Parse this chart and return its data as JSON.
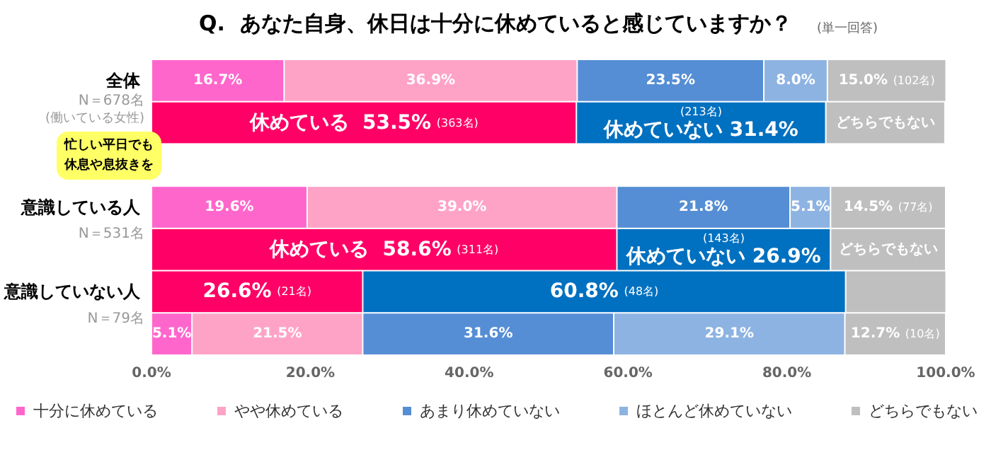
{
  "chart_data": {
    "type": "bar",
    "orientation": "horizontal",
    "stacked": true,
    "title": "Q.  あなた自身、休日は十分に休めていると感じていますか？",
    "subtitle": "(単一回答)",
    "categories": [
      "全体",
      null,
      null,
      "意識している人",
      null,
      "意識していない人",
      null
    ],
    "series": [
      {
        "name": "十分に休めている",
        "color": "#ff66cc",
        "values": [
          16.7,
          null,
          null,
          19.6,
          null,
          null,
          5.1
        ],
        "value_labels": [
          "16.7%",
          null,
          null,
          "19.6%",
          null,
          null,
          "5.1%"
        ]
      },
      {
        "name": "やや休めている",
        "color": "#ffa3c6",
        "values": [
          36.9,
          null,
          null,
          39.0,
          null,
          null,
          21.5
        ],
        "value_labels": [
          "36.9%",
          null,
          null,
          "39.0%",
          null,
          null,
          "21.5%"
        ]
      },
      {
        "name": "あまり休めていない",
        "color": "#558ed5",
        "values": [
          23.5,
          null,
          null,
          21.8,
          null,
          null,
          31.6
        ],
        "value_labels": [
          "23.5%",
          null,
          null,
          "21.8%",
          null,
          null,
          "31.6%"
        ]
      },
      {
        "name": "ほとんど休めていない",
        "color": "#8db3e2",
        "values": [
          8.0,
          null,
          null,
          5.1,
          null,
          null,
          29.1
        ],
        "value_labels": [
          "8.0%",
          null,
          null,
          "5.1%",
          null,
          null,
          "29.1%"
        ]
      },
      {
        "color": "#ff0066",
        "values": [
          null,
          53.5,
          null,
          null,
          58.6,
          26.6,
          null
        ],
        "value_labels": [
          null,
          "休めている  53.5% (363名)",
          null,
          null,
          "休めている  58.6% (311名)",
          "26.6% (21名)",
          null
        ]
      },
      {
        "color": "#0070c0",
        "values": [
          null,
          31.4,
          null,
          null,
          26.9,
          60.8,
          null
        ],
        "value_labels": [
          null,
          "(213名) 休めていない 31.4%",
          null,
          null,
          "(143名) 休めていない 26.9%",
          "60.8% (48名)",
          null
        ]
      },
      {
        "name": "どちらでもない",
        "color": "#bfbfbf",
        "values": [
          15.0,
          15.0,
          null,
          14.5,
          14.5,
          12.7,
          12.7
        ],
        "value_labels": [
          "15.0% (102名)",
          "どちらでもない",
          null,
          "14.5% (77名)",
          "どちらでもない",
          null,
          "12.7% (10名)"
        ]
      }
    ],
    "xlim": [
      0,
      100
    ],
    "xticks": [
      {
        "value": 0,
        "label": "0.0%"
      },
      {
        "value": 20,
        "label": "20.0%"
      },
      {
        "value": 40,
        "label": "40.0%"
      },
      {
        "value": 60,
        "label": "60.0%"
      },
      {
        "value": 80,
        "label": "80.0%"
      },
      {
        "value": 100,
        "label": "100.0%"
      }
    ],
    "grid": false,
    "legend": "bottom",
    "annotations": [
      "N＝678名",
      "(働いている女性)",
      "忙しい平日でも休息や息抜きを",
      "N＝531名",
      "N＝79名"
    ]
  }
}
